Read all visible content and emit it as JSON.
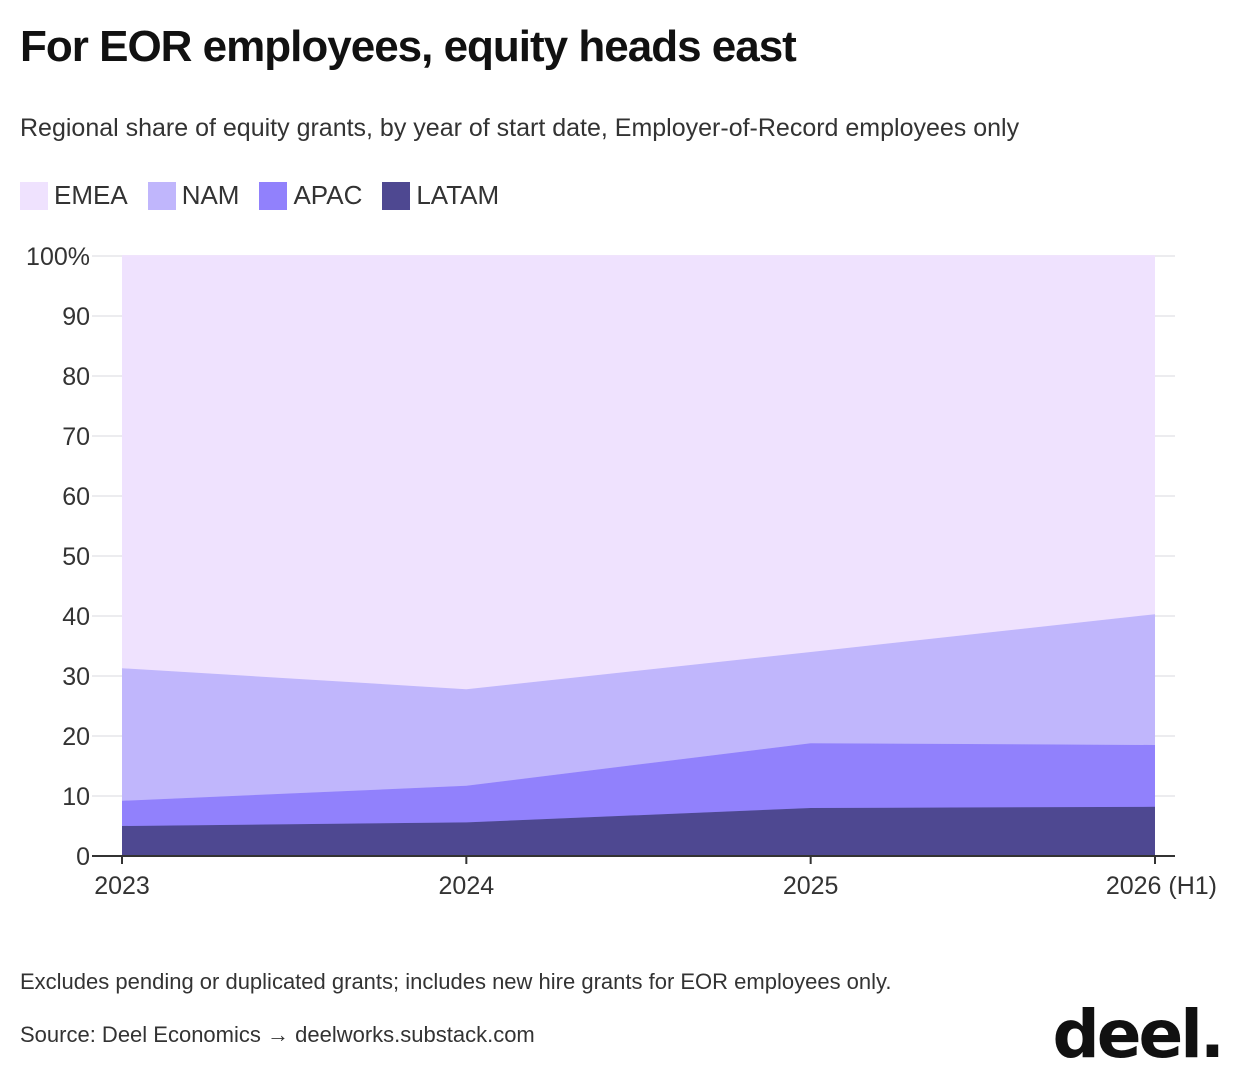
{
  "title": "For EOR employees, equity heads east",
  "subtitle": "Regional share of equity grants, by year of start date, Employer-of-Record employees only",
  "note": "Excludes pending or duplicated grants; includes new hire grants for EOR employees only.",
  "source": "Source: Deel Economics → deelworks.substack.com",
  "logo_text": "deel.",
  "legend": [
    {
      "label": "EMEA",
      "color": "#efe2fe"
    },
    {
      "label": "NAM",
      "color": "#c0b6fc"
    },
    {
      "label": "APAC",
      "color": "#9181fc"
    },
    {
      "label": "LATAM",
      "color": "#4e4891"
    }
  ],
  "chart_data": {
    "type": "area",
    "stacked": true,
    "categories": [
      "2023",
      "2024",
      "2025",
      "2026 (H1)"
    ],
    "series": [
      {
        "name": "LATAM",
        "color": "#4e4891",
        "values": [
          5.0,
          5.6,
          8.0,
          8.2
        ]
      },
      {
        "name": "APAC",
        "color": "#9181fc",
        "values": [
          4.2,
          6.1,
          10.8,
          10.3
        ]
      },
      {
        "name": "NAM",
        "color": "#c0b6fc",
        "values": [
          22.1,
          16.1,
          15.2,
          21.8
        ]
      },
      {
        "name": "EMEA",
        "color": "#efe2fe",
        "values": [
          68.7,
          72.2,
          66.0,
          59.7
        ]
      }
    ],
    "ylim": [
      0,
      100
    ],
    "yticks": [
      0,
      10,
      20,
      30,
      40,
      50,
      60,
      70,
      80,
      90,
      100
    ],
    "ytick_labels": [
      "0",
      "10",
      "20",
      "30",
      "40",
      "50",
      "60",
      "70",
      "80",
      "90",
      "100%"
    ],
    "grid": true,
    "legend_position": "top-left",
    "xlabel": "",
    "ylabel": ""
  }
}
